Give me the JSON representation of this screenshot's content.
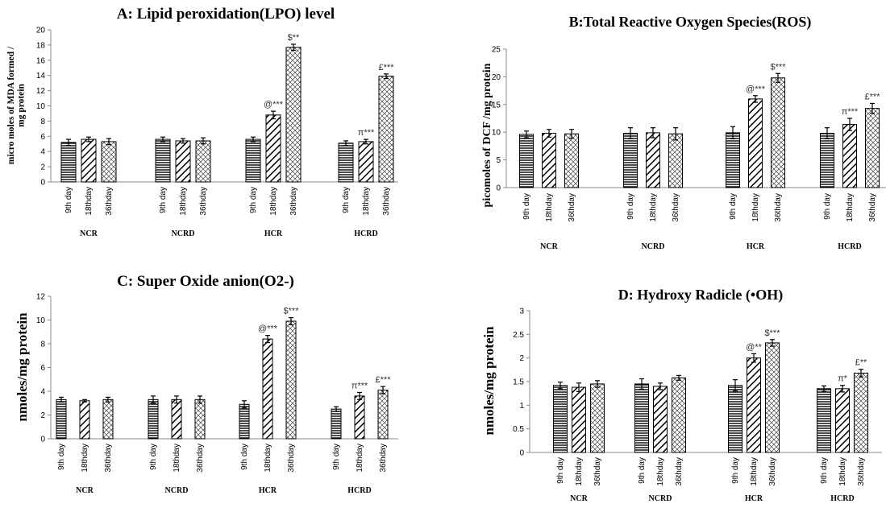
{
  "chart_data": [
    {
      "type": "bar",
      "title": "A: Lipid peroxidation(LPO)  level",
      "ylabel": [
        "micro  moles of MDA formed /",
        "mg protein"
      ],
      "ylim": [
        0,
        20
      ],
      "yticks": [
        0,
        2,
        4,
        6,
        8,
        10,
        12,
        14,
        16,
        18,
        20
      ],
      "groups": [
        "NCR",
        "NCRD",
        "HCR",
        "HCRD"
      ],
      "categories": [
        "9th  day",
        "18thday",
        "36thday"
      ],
      "patterns": [
        "horizontal",
        "diagonal",
        "crosshatch"
      ],
      "values": [
        [
          5.2,
          5.6,
          5.3
        ],
        [
          5.6,
          5.4,
          5.4
        ],
        [
          5.6,
          8.8,
          17.7
        ],
        [
          5.1,
          5.3,
          13.9
        ]
      ],
      "errors": [
        [
          0.4,
          0.3,
          0.4
        ],
        [
          0.3,
          0.3,
          0.4
        ],
        [
          0.3,
          0.5,
          0.4
        ],
        [
          0.3,
          0.3,
          0.3
        ]
      ],
      "annotations": [
        [
          null,
          null,
          null
        ],
        [
          null,
          null,
          null
        ],
        [
          null,
          "@***",
          "$**"
        ],
        [
          null,
          "π***",
          "£***"
        ]
      ]
    },
    {
      "type": "bar",
      "title": "B:Total Reactive Oxygen Species(ROS)",
      "ylabel": [
        "picomoles of DCF /mg protein"
      ],
      "ylim": [
        0,
        25
      ],
      "yticks": [
        0,
        5,
        10,
        15,
        20,
        25
      ],
      "groups": [
        "NCR",
        "NCRD",
        "HCR",
        "HCRD"
      ],
      "categories": [
        "9th  day",
        "18thday",
        "36thday"
      ],
      "patterns": [
        "horizontal",
        "diagonal",
        "crosshatch"
      ],
      "values": [
        [
          9.6,
          9.8,
          9.7
        ],
        [
          9.8,
          9.9,
          9.7
        ],
        [
          9.9,
          16.0,
          19.8
        ],
        [
          9.8,
          11.4,
          14.3
        ]
      ],
      "errors": [
        [
          0.6,
          0.7,
          0.8
        ],
        [
          1.0,
          0.9,
          1.1
        ],
        [
          1.1,
          0.6,
          0.8
        ],
        [
          1.0,
          1.1,
          0.9
        ]
      ],
      "annotations": [
        [
          null,
          null,
          null
        ],
        [
          null,
          null,
          null
        ],
        [
          null,
          "@***",
          "$***"
        ],
        [
          null,
          "π***",
          "£***"
        ]
      ]
    },
    {
      "type": "bar",
      "title": "C: Super Oxide anion(O2-)",
      "ylabel": [
        "nmoles/mg protein"
      ],
      "ylim": [
        0,
        12
      ],
      "yticks": [
        0,
        2,
        4,
        6,
        8,
        10,
        12
      ],
      "groups": [
        "NCR",
        "NCRD",
        "HCR",
        "HCRD"
      ],
      "categories": [
        "9th  day",
        "18thday",
        "36thday"
      ],
      "patterns": [
        "horizontal",
        "diagonal",
        "crosshatch"
      ],
      "values": [
        [
          3.3,
          3.2,
          3.3
        ],
        [
          3.3,
          3.3,
          3.3
        ],
        [
          2.9,
          8.4,
          9.9
        ],
        [
          2.5,
          3.6,
          4.1
        ]
      ],
      "errors": [
        [
          0.2,
          0.1,
          0.2
        ],
        [
          0.3,
          0.3,
          0.3
        ],
        [
          0.3,
          0.3,
          0.3
        ],
        [
          0.2,
          0.3,
          0.3
        ]
      ],
      "annotations": [
        [
          null,
          null,
          null
        ],
        [
          null,
          null,
          null
        ],
        [
          null,
          "@***",
          "$***"
        ],
        [
          null,
          "π***",
          "£***"
        ]
      ]
    },
    {
      "type": "bar",
      "title": "D: Hydroxy Radicle (•OH)",
      "ylabel": [
        "nmoles/mg  protein"
      ],
      "ylim": [
        0,
        3
      ],
      "yticks": [
        0,
        0.5,
        1,
        1.5,
        2,
        2.5,
        3
      ],
      "groups": [
        "NCR",
        "NCRD",
        "HCR",
        "HCRD"
      ],
      "categories": [
        "9th  day",
        "18thday",
        "36thday"
      ],
      "patterns": [
        "horizontal",
        "diagonal",
        "crosshatch"
      ],
      "values": [
        [
          1.42,
          1.38,
          1.45
        ],
        [
          1.45,
          1.4,
          1.58
        ],
        [
          1.42,
          2.0,
          2.32
        ],
        [
          1.35,
          1.35,
          1.68
        ]
      ],
      "errors": [
        [
          0.07,
          0.09,
          0.07
        ],
        [
          0.11,
          0.07,
          0.05
        ],
        [
          0.12,
          0.09,
          0.07
        ],
        [
          0.06,
          0.07,
          0.08
        ]
      ],
      "annotations": [
        [
          null,
          null,
          null
        ],
        [
          null,
          null,
          null
        ],
        [
          null,
          "@**",
          "$***"
        ],
        [
          null,
          "π*",
          "£**"
        ]
      ]
    }
  ]
}
